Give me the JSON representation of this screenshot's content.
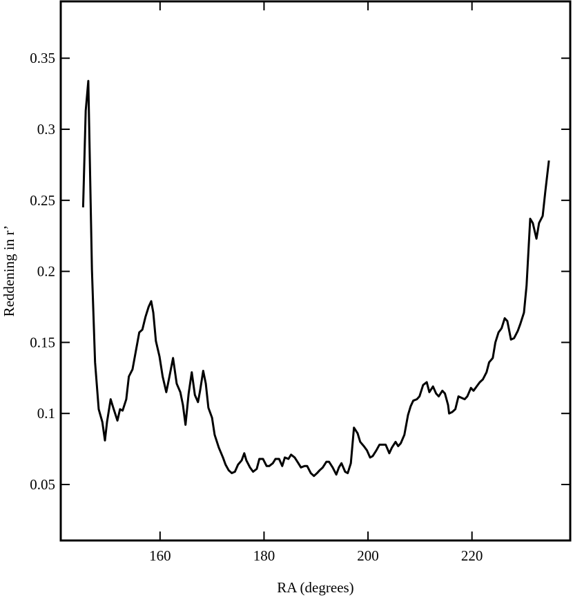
{
  "chart_data": {
    "type": "line",
    "xlabel": "RA (degrees)",
    "ylabel": "Reddening in r’",
    "color": "#000000",
    "xlim": [
      140.9,
      238.9
    ],
    "ylim": [
      0.0106,
      0.39
    ],
    "xticks": [
      160,
      180,
      200,
      220
    ],
    "yticks": [
      0.05,
      0.1,
      0.15,
      0.2,
      0.25,
      0.3,
      0.35
    ],
    "x": [
      145.2,
      145.7,
      146.2,
      146.9,
      147.5,
      148.2,
      148.9,
      149.4,
      149.8,
      150.5,
      151.0,
      151.8,
      152.3,
      152.8,
      153.5,
      154.0,
      154.7,
      155.4,
      156.0,
      156.6,
      157.2,
      157.8,
      158.3,
      158.7,
      159.2,
      159.9,
      160.5,
      161.2,
      161.7,
      162.5,
      163.2,
      163.9,
      164.4,
      164.9,
      165.5,
      166.1,
      166.7,
      167.3,
      167.7,
      168.3,
      168.8,
      169.3,
      170.0,
      170.5,
      171.3,
      172.1,
      172.6,
      173.2,
      173.8,
      174.4,
      175.0,
      175.7,
      176.2,
      176.6,
      177.3,
      177.9,
      178.6,
      179.1,
      179.8,
      180.5,
      181.0,
      181.7,
      182.2,
      182.9,
      183.5,
      184.0,
      184.7,
      185.2,
      185.9,
      186.6,
      187.1,
      187.8,
      188.3,
      189.0,
      189.6,
      190.2,
      190.7,
      191.3,
      192.0,
      192.5,
      193.2,
      193.9,
      194.4,
      194.9,
      195.6,
      196.1,
      196.7,
      197.3,
      198.0,
      198.5,
      199.2,
      199.8,
      200.4,
      200.9,
      201.6,
      202.2,
      202.9,
      203.4,
      204.1,
      204.6,
      205.3,
      205.8,
      206.3,
      207.0,
      207.7,
      208.2,
      208.7,
      209.4,
      209.9,
      210.6,
      211.3,
      211.8,
      212.5,
      213.1,
      213.6,
      214.3,
      214.8,
      215.4,
      215.6,
      216.2,
      216.8,
      217.4,
      218.0,
      218.6,
      219.1,
      219.8,
      220.3,
      220.9,
      221.5,
      222.1,
      222.8,
      223.3,
      224.0,
      224.5,
      225.1,
      225.7,
      226.3,
      226.8,
      227.5,
      228.1,
      228.8,
      229.3,
      230.0,
      230.5,
      231.2,
      231.7,
      232.4,
      232.9,
      233.6,
      234.1,
      234.8
    ],
    "values": [
      0.245,
      0.313,
      0.334,
      0.201,
      0.136,
      0.103,
      0.094,
      0.081,
      0.094,
      0.11,
      0.104,
      0.095,
      0.103,
      0.102,
      0.11,
      0.126,
      0.131,
      0.145,
      0.157,
      0.159,
      0.168,
      0.175,
      0.179,
      0.171,
      0.151,
      0.14,
      0.126,
      0.115,
      0.124,
      0.139,
      0.121,
      0.115,
      0.106,
      0.092,
      0.114,
      0.129,
      0.113,
      0.108,
      0.116,
      0.13,
      0.121,
      0.104,
      0.097,
      0.085,
      0.076,
      0.069,
      0.064,
      0.06,
      0.058,
      0.059,
      0.064,
      0.067,
      0.072,
      0.067,
      0.062,
      0.059,
      0.061,
      0.068,
      0.068,
      0.063,
      0.063,
      0.065,
      0.068,
      0.068,
      0.063,
      0.069,
      0.068,
      0.071,
      0.069,
      0.065,
      0.062,
      0.063,
      0.063,
      0.058,
      0.056,
      0.058,
      0.06,
      0.062,
      0.066,
      0.066,
      0.062,
      0.057,
      0.062,
      0.065,
      0.059,
      0.058,
      0.065,
      0.09,
      0.086,
      0.08,
      0.077,
      0.074,
      0.069,
      0.07,
      0.074,
      0.078,
      0.078,
      0.078,
      0.072,
      0.076,
      0.08,
      0.077,
      0.079,
      0.085,
      0.099,
      0.105,
      0.109,
      0.11,
      0.112,
      0.12,
      0.122,
      0.115,
      0.119,
      0.114,
      0.112,
      0.116,
      0.114,
      0.106,
      0.1,
      0.101,
      0.103,
      0.112,
      0.111,
      0.11,
      0.112,
      0.118,
      0.116,
      0.119,
      0.122,
      0.124,
      0.129,
      0.136,
      0.139,
      0.15,
      0.157,
      0.16,
      0.167,
      0.165,
      0.152,
      0.153,
      0.158,
      0.163,
      0.171,
      0.19,
      0.237,
      0.234,
      0.223,
      0.234,
      0.239,
      0.256,
      0.278
    ]
  }
}
